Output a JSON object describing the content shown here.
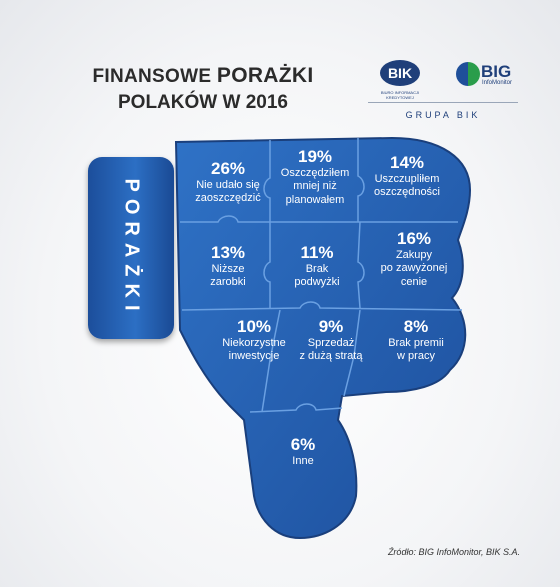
{
  "title": {
    "line1_prefix": "FINANSOWE",
    "line1_emph": "PORAŻKI",
    "line2": "POLAKÓW W 2016"
  },
  "logos": {
    "bik": "BIK",
    "bik_subtitle": "BIURO INFORMACJI KREDYTOWEJ",
    "big": "BIG",
    "big_subtitle": "InfoMonitor",
    "group": "GRUPA BIK"
  },
  "side_label": "PORAŻKI",
  "source": "Źródło: BIG InfoMonitor, BIK S.A.",
  "colors": {
    "piece_fill": "#2563b8",
    "piece_edge": "#5d95dc",
    "pill": "#2c6fc4",
    "text": "#ffffff"
  },
  "chart_data": {
    "type": "table",
    "title": "FINANSOWE PORAŻKI POLAKÓW W 2016",
    "categories": [
      "Nie udało się zaoszczędzić",
      "Oszczędziłem mniej niż planowałem",
      "Uszczupliłem oszczędności",
      "Niższe zarobki",
      "Brak podwyżki",
      "Zakupy po zawyżonej cenie",
      "Niekorzystne inwestycje",
      "Sprzedaż z dużą stratą",
      "Brak premii w pracy",
      "Inne"
    ],
    "values": [
      26,
      19,
      14,
      13,
      11,
      16,
      10,
      9,
      8,
      6
    ],
    "unit": "%",
    "items": [
      {
        "pct": "26%",
        "line1": "Nie udało się",
        "line2": "zaoszczędzić",
        "line3": ""
      },
      {
        "pct": "19%",
        "line1": "Oszczędziłem",
        "line2": "mniej niż",
        "line3": "planowałem"
      },
      {
        "pct": "14%",
        "line1": "Uszczupliłem",
        "line2": "oszczędności",
        "line3": ""
      },
      {
        "pct": "13%",
        "line1": "Niższe",
        "line2": "zarobki",
        "line3": ""
      },
      {
        "pct": "11%",
        "line1": "Brak",
        "line2": "podwyżki",
        "line3": ""
      },
      {
        "pct": "16%",
        "line1": "Zakupy",
        "line2": "po zawyżonej",
        "line3": "cenie"
      },
      {
        "pct": "10%",
        "line1": "Niekorzystne",
        "line2": "inwestycje",
        "line3": ""
      },
      {
        "pct": "9%",
        "line1": "Sprzedaż",
        "line2": "z dużą stratą",
        "line3": ""
      },
      {
        "pct": "8%",
        "line1": "Brak premii",
        "line2": "w pracy",
        "line3": ""
      },
      {
        "pct": "6%",
        "line1": "Inne",
        "line2": "",
        "line3": ""
      }
    ]
  }
}
